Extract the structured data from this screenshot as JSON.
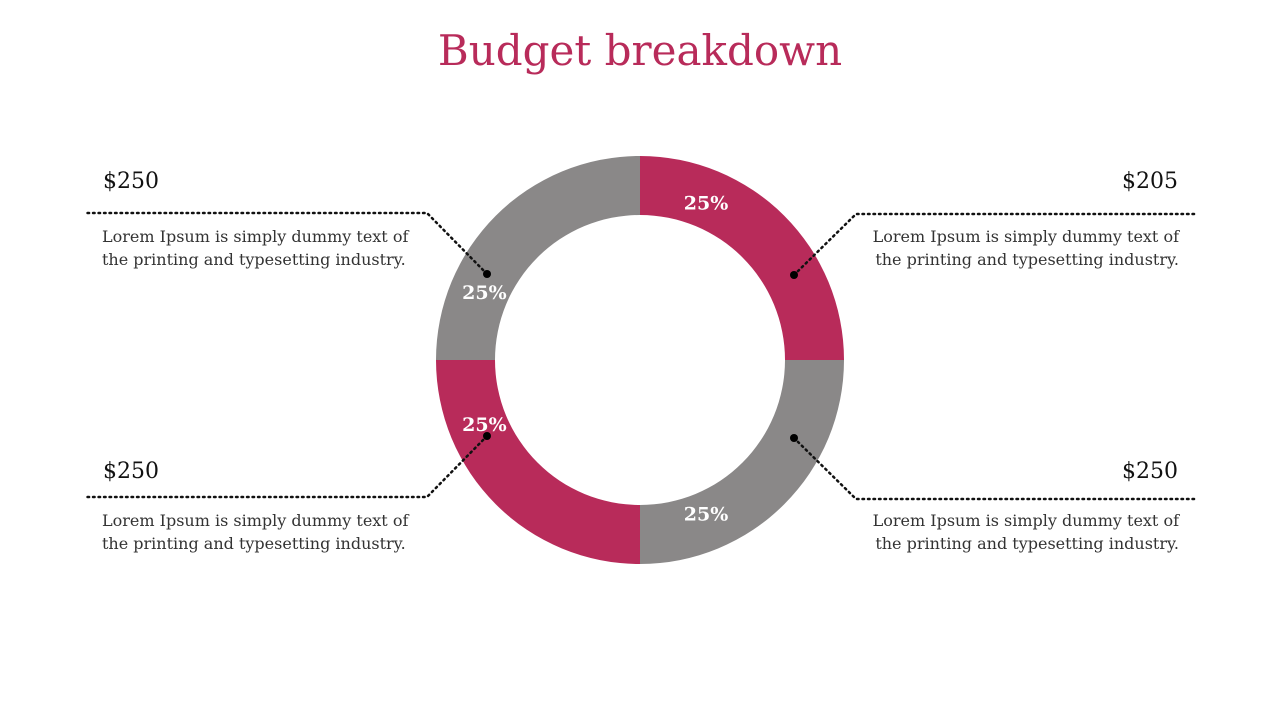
{
  "title": "Budget breakdown",
  "colors": {
    "accent": "#b82b5a",
    "gray": "#8a8888",
    "title": "#b82b5a"
  },
  "callouts": [
    {
      "amount": "$250",
      "text": "Lorem Ipsum is simply dummy text of the printing and typesetting industry."
    },
    {
      "amount": "$205",
      "text": "Lorem Ipsum is simply dummy text of the printing and typesetting industry."
    },
    {
      "amount": "$250",
      "text": "Lorem Ipsum is simply dummy text of the printing and typesetting industry."
    },
    {
      "amount": "$250",
      "text": "Lorem Ipsum is simply dummy text of the printing and typesetting industry."
    }
  ],
  "chart_data": {
    "type": "pie",
    "variant": "donut",
    "title": "Budget breakdown",
    "slices": [
      {
        "position": "top-right",
        "value": 25,
        "label": "25%",
        "color": "#b82b5a"
      },
      {
        "position": "bottom-right",
        "value": 25,
        "label": "25%",
        "color": "#8a8888"
      },
      {
        "position": "bottom-left",
        "value": 25,
        "label": "25%",
        "color": "#b82b5a"
      },
      {
        "position": "top-left",
        "value": 25,
        "label": "25%",
        "color": "#8a8888"
      }
    ]
  }
}
